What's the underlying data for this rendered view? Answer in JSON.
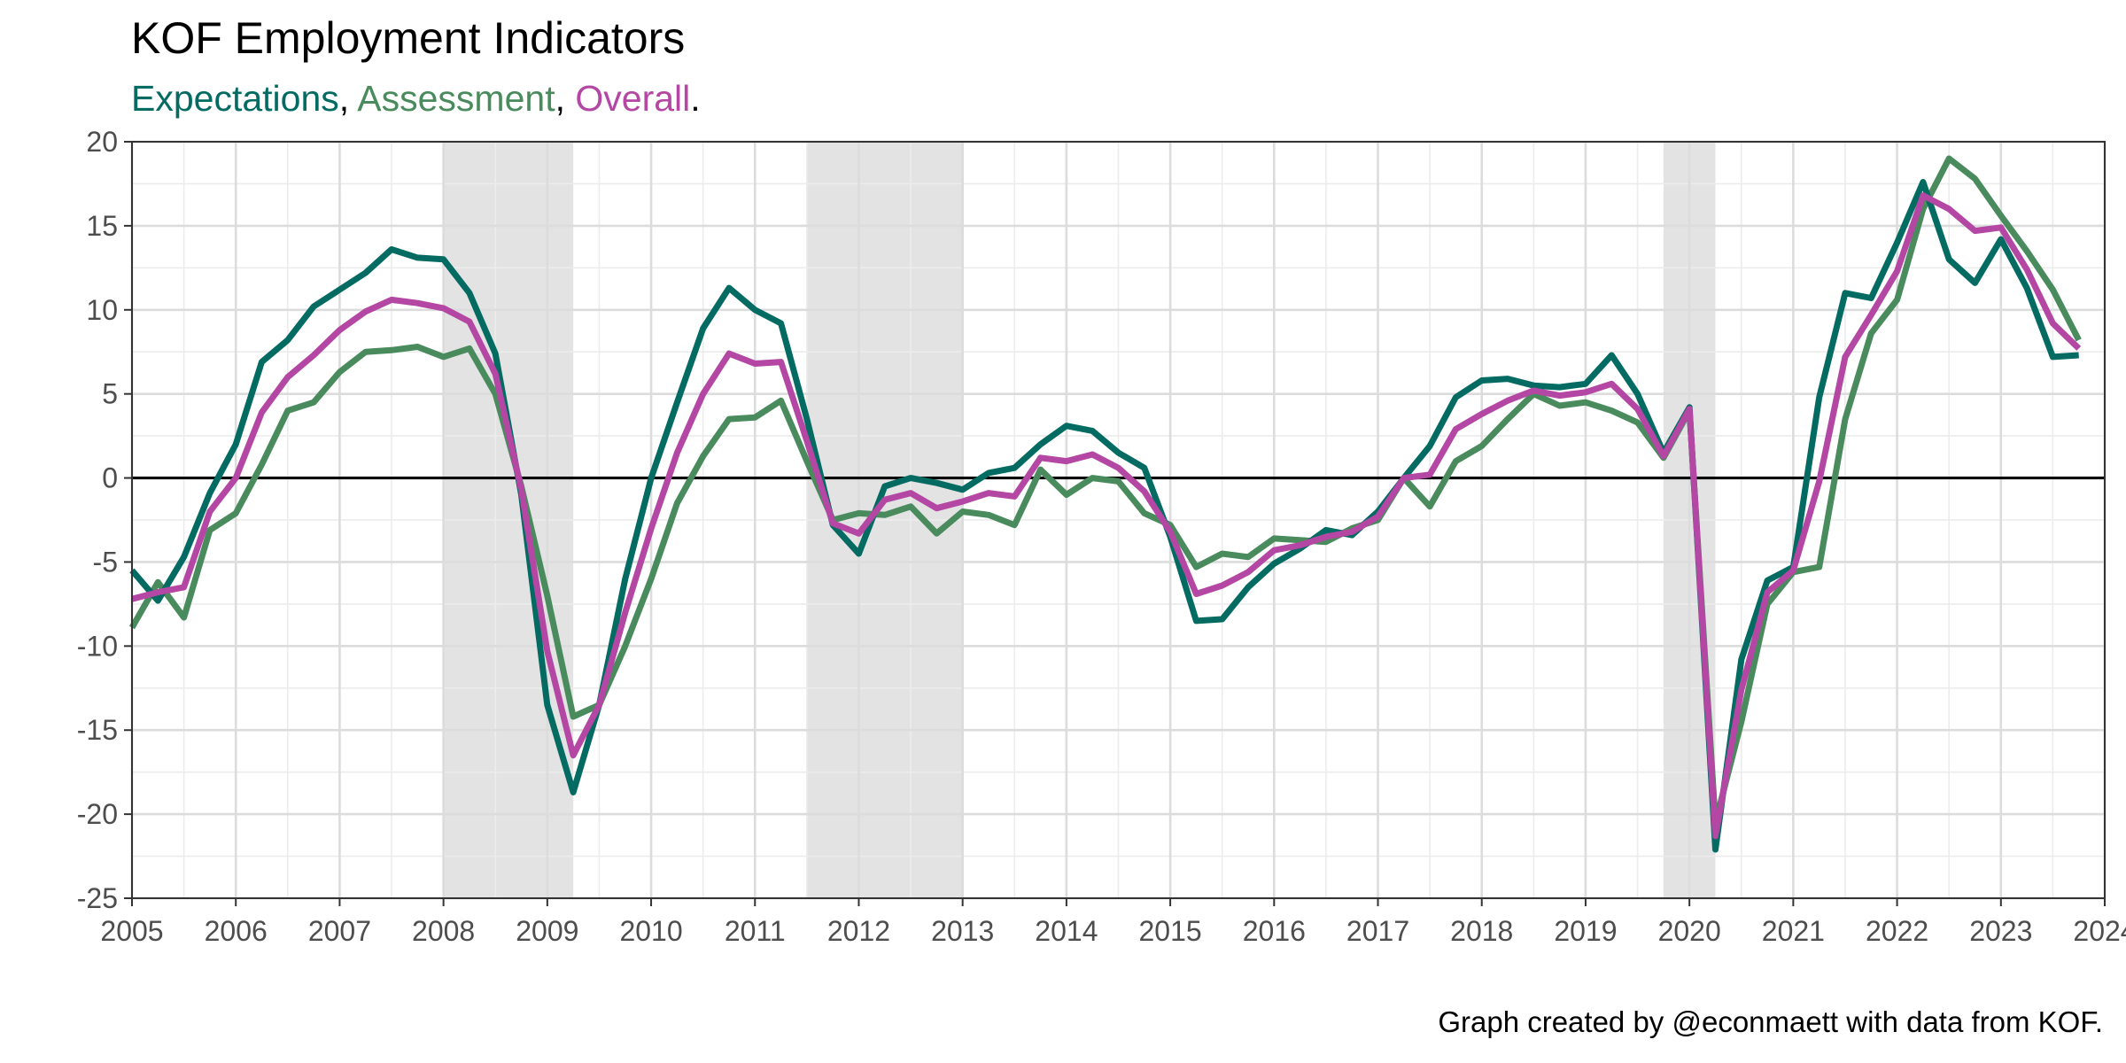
{
  "chart_data": {
    "type": "line",
    "title": "KOF Employment Indicators",
    "subtitle_parts": [
      {
        "text": "Expectations",
        "color": "#036b62"
      },
      {
        "text": ", ",
        "color": "#000000"
      },
      {
        "text": "Assessment",
        "color": "#4a8b5e"
      },
      {
        "text": ", ",
        "color": "#000000"
      },
      {
        "text": "Overall",
        "color": "#b347a3"
      },
      {
        "text": ".",
        "color": "#000000"
      }
    ],
    "caption": "Graph created by @econmaett with data from KOF.",
    "xlim": [
      2005,
      2024
    ],
    "ylim": [
      -25,
      20
    ],
    "x_ticks": [
      2005,
      2006,
      2007,
      2008,
      2009,
      2010,
      2011,
      2012,
      2013,
      2014,
      2015,
      2016,
      2017,
      2018,
      2019,
      2020,
      2021,
      2022,
      2023,
      2024
    ],
    "y_ticks": [
      -25,
      -20,
      -15,
      -10,
      -5,
      0,
      5,
      10,
      15,
      20
    ],
    "grid": true,
    "zero_line": true,
    "recessions": [
      [
        2008.0,
        2009.25
      ],
      [
        2011.5,
        2013.0
      ],
      [
        2019.75,
        2020.25
      ]
    ],
    "series": [
      {
        "name": "Assessment",
        "color": "#4a8b5e",
        "values": [
          [
            2005.0,
            -8.9
          ],
          [
            2005.25,
            -6.2
          ],
          [
            2005.5,
            -8.3
          ],
          [
            2005.75,
            -3.1
          ],
          [
            2006.0,
            -2.1
          ],
          [
            2006.25,
            0.8
          ],
          [
            2006.5,
            4.0
          ],
          [
            2006.75,
            4.5
          ],
          [
            2007.0,
            6.3
          ],
          [
            2007.25,
            7.5
          ],
          [
            2007.5,
            7.6
          ],
          [
            2007.75,
            7.8
          ],
          [
            2008.0,
            7.2
          ],
          [
            2008.25,
            7.7
          ],
          [
            2008.5,
            5.0
          ],
          [
            2008.75,
            -0.5
          ],
          [
            2009.0,
            -7.0
          ],
          [
            2009.25,
            -14.2
          ],
          [
            2009.5,
            -13.5
          ],
          [
            2009.75,
            -10.0
          ],
          [
            2010.0,
            -6.0
          ],
          [
            2010.25,
            -1.5
          ],
          [
            2010.5,
            1.3
          ],
          [
            2010.75,
            3.5
          ],
          [
            2011.0,
            3.6
          ],
          [
            2011.25,
            4.6
          ],
          [
            2011.5,
            1.0
          ],
          [
            2011.75,
            -2.5
          ],
          [
            2012.0,
            -2.1
          ],
          [
            2012.25,
            -2.2
          ],
          [
            2012.5,
            -1.7
          ],
          [
            2012.75,
            -3.3
          ],
          [
            2013.0,
            -2.0
          ],
          [
            2013.25,
            -2.2
          ],
          [
            2013.5,
            -2.8
          ],
          [
            2013.75,
            0.5
          ],
          [
            2014.0,
            -1.0
          ],
          [
            2014.25,
            0.0
          ],
          [
            2014.5,
            -0.2
          ],
          [
            2014.75,
            -2.1
          ],
          [
            2015.0,
            -2.8
          ],
          [
            2015.25,
            -5.3
          ],
          [
            2015.5,
            -4.5
          ],
          [
            2015.75,
            -4.7
          ],
          [
            2016.0,
            -3.6
          ],
          [
            2016.25,
            -3.7
          ],
          [
            2016.5,
            -3.8
          ],
          [
            2016.75,
            -3.0
          ],
          [
            2017.0,
            -2.5
          ],
          [
            2017.25,
            0.0
          ],
          [
            2017.5,
            -1.7
          ],
          [
            2017.75,
            1.0
          ],
          [
            2018.0,
            1.9
          ],
          [
            2018.25,
            3.5
          ],
          [
            2018.5,
            5.0
          ],
          [
            2018.75,
            4.3
          ],
          [
            2019.0,
            4.5
          ],
          [
            2019.25,
            4.0
          ],
          [
            2019.5,
            3.3
          ],
          [
            2019.75,
            1.2
          ],
          [
            2020.0,
            4.0
          ],
          [
            2020.25,
            -20.5
          ],
          [
            2020.5,
            -14.5
          ],
          [
            2020.75,
            -7.5
          ],
          [
            2021.0,
            -5.6
          ],
          [
            2021.25,
            -5.3
          ],
          [
            2021.5,
            3.5
          ],
          [
            2021.75,
            8.6
          ],
          [
            2022.0,
            10.6
          ],
          [
            2022.25,
            16.0
          ],
          [
            2022.5,
            19.0
          ],
          [
            2022.75,
            17.8
          ],
          [
            2023.0,
            15.6
          ],
          [
            2023.25,
            13.5
          ],
          [
            2023.5,
            11.2
          ],
          [
            2023.75,
            8.2
          ]
        ]
      },
      {
        "name": "Expectations",
        "color": "#036b62",
        "values": [
          [
            2005.0,
            -5.5
          ],
          [
            2005.25,
            -7.3
          ],
          [
            2005.5,
            -4.7
          ],
          [
            2005.75,
            -0.9
          ],
          [
            2006.0,
            2.0
          ],
          [
            2006.25,
            6.9
          ],
          [
            2006.5,
            8.2
          ],
          [
            2006.75,
            10.2
          ],
          [
            2007.0,
            11.2
          ],
          [
            2007.25,
            12.2
          ],
          [
            2007.5,
            13.6
          ],
          [
            2007.75,
            13.1
          ],
          [
            2008.0,
            13.0
          ],
          [
            2008.25,
            11.0
          ],
          [
            2008.5,
            7.4
          ],
          [
            2008.75,
            -1.0
          ],
          [
            2009.0,
            -13.5
          ],
          [
            2009.25,
            -18.7
          ],
          [
            2009.5,
            -13.5
          ],
          [
            2009.75,
            -6.0
          ],
          [
            2010.0,
            0.0
          ],
          [
            2010.25,
            4.5
          ],
          [
            2010.5,
            8.9
          ],
          [
            2010.75,
            11.3
          ],
          [
            2011.0,
            10.0
          ],
          [
            2011.25,
            9.2
          ],
          [
            2011.5,
            3.5
          ],
          [
            2011.75,
            -2.8
          ],
          [
            2012.0,
            -4.5
          ],
          [
            2012.25,
            -0.5
          ],
          [
            2012.5,
            0.0
          ],
          [
            2012.75,
            -0.3
          ],
          [
            2013.0,
            -0.7
          ],
          [
            2013.25,
            0.3
          ],
          [
            2013.5,
            0.6
          ],
          [
            2013.75,
            2.0
          ],
          [
            2014.0,
            3.1
          ],
          [
            2014.25,
            2.8
          ],
          [
            2014.5,
            1.5
          ],
          [
            2014.75,
            0.6
          ],
          [
            2015.0,
            -3.5
          ],
          [
            2015.25,
            -8.5
          ],
          [
            2015.5,
            -8.4
          ],
          [
            2015.75,
            -6.5
          ],
          [
            2016.0,
            -5.1
          ],
          [
            2016.25,
            -4.2
          ],
          [
            2016.5,
            -3.1
          ],
          [
            2016.75,
            -3.4
          ],
          [
            2017.0,
            -2.0
          ],
          [
            2017.25,
            0.0
          ],
          [
            2017.5,
            1.9
          ],
          [
            2017.75,
            4.8
          ],
          [
            2018.0,
            5.8
          ],
          [
            2018.25,
            5.9
          ],
          [
            2018.5,
            5.5
          ],
          [
            2018.75,
            5.4
          ],
          [
            2019.0,
            5.6
          ],
          [
            2019.25,
            7.3
          ],
          [
            2019.5,
            5.0
          ],
          [
            2019.75,
            1.5
          ],
          [
            2020.0,
            4.2
          ],
          [
            2020.25,
            -22.1
          ],
          [
            2020.5,
            -10.8
          ],
          [
            2020.75,
            -6.1
          ],
          [
            2021.0,
            -5.3
          ],
          [
            2021.25,
            4.8
          ],
          [
            2021.5,
            11.0
          ],
          [
            2021.75,
            10.7
          ],
          [
            2022.0,
            14.0
          ],
          [
            2022.25,
            17.6
          ],
          [
            2022.5,
            13.0
          ],
          [
            2022.75,
            11.6
          ],
          [
            2023.0,
            14.2
          ],
          [
            2023.25,
            11.3
          ],
          [
            2023.5,
            7.2
          ],
          [
            2023.75,
            7.3
          ]
        ]
      },
      {
        "name": "Overall",
        "color": "#b347a3",
        "values": [
          [
            2005.0,
            -7.2
          ],
          [
            2005.25,
            -6.8
          ],
          [
            2005.5,
            -6.5
          ],
          [
            2005.75,
            -2.0
          ],
          [
            2006.0,
            0.0
          ],
          [
            2006.25,
            3.9
          ],
          [
            2006.5,
            6.0
          ],
          [
            2006.75,
            7.3
          ],
          [
            2007.0,
            8.8
          ],
          [
            2007.25,
            9.9
          ],
          [
            2007.5,
            10.6
          ],
          [
            2007.75,
            10.4
          ],
          [
            2008.0,
            10.1
          ],
          [
            2008.25,
            9.3
          ],
          [
            2008.5,
            6.2
          ],
          [
            2008.75,
            -0.7
          ],
          [
            2009.0,
            -10.3
          ],
          [
            2009.25,
            -16.5
          ],
          [
            2009.5,
            -13.5
          ],
          [
            2009.75,
            -8.0
          ],
          [
            2010.0,
            -3.0
          ],
          [
            2010.25,
            1.5
          ],
          [
            2010.5,
            5.0
          ],
          [
            2010.75,
            7.4
          ],
          [
            2011.0,
            6.8
          ],
          [
            2011.25,
            6.9
          ],
          [
            2011.5,
            2.2
          ],
          [
            2011.75,
            -2.7
          ],
          [
            2012.0,
            -3.3
          ],
          [
            2012.25,
            -1.3
          ],
          [
            2012.5,
            -0.9
          ],
          [
            2012.75,
            -1.8
          ],
          [
            2013.0,
            -1.4
          ],
          [
            2013.25,
            -0.9
          ],
          [
            2013.5,
            -1.1
          ],
          [
            2013.75,
            1.2
          ],
          [
            2014.0,
            1.0
          ],
          [
            2014.25,
            1.4
          ],
          [
            2014.5,
            0.6
          ],
          [
            2014.75,
            -0.8
          ],
          [
            2015.0,
            -3.2
          ],
          [
            2015.25,
            -6.9
          ],
          [
            2015.5,
            -6.4
          ],
          [
            2015.75,
            -5.6
          ],
          [
            2016.0,
            -4.3
          ],
          [
            2016.25,
            -4.0
          ],
          [
            2016.5,
            -3.5
          ],
          [
            2016.75,
            -3.2
          ],
          [
            2017.0,
            -2.3
          ],
          [
            2017.25,
            0.0
          ],
          [
            2017.5,
            0.2
          ],
          [
            2017.75,
            2.9
          ],
          [
            2018.0,
            3.8
          ],
          [
            2018.25,
            4.6
          ],
          [
            2018.5,
            5.2
          ],
          [
            2018.75,
            4.9
          ],
          [
            2019.0,
            5.1
          ],
          [
            2019.25,
            5.6
          ],
          [
            2019.5,
            4.1
          ],
          [
            2019.75,
            1.3
          ],
          [
            2020.0,
            4.1
          ],
          [
            2020.25,
            -21.3
          ],
          [
            2020.5,
            -12.6
          ],
          [
            2020.75,
            -6.8
          ],
          [
            2021.0,
            -5.5
          ],
          [
            2021.25,
            -0.2
          ],
          [
            2021.5,
            7.2
          ],
          [
            2021.75,
            9.7
          ],
          [
            2022.0,
            12.3
          ],
          [
            2022.25,
            16.8
          ],
          [
            2022.5,
            16.0
          ],
          [
            2022.75,
            14.7
          ],
          [
            2023.0,
            14.9
          ],
          [
            2023.25,
            12.4
          ],
          [
            2023.5,
            9.2
          ],
          [
            2023.75,
            7.7
          ]
        ]
      }
    ]
  }
}
